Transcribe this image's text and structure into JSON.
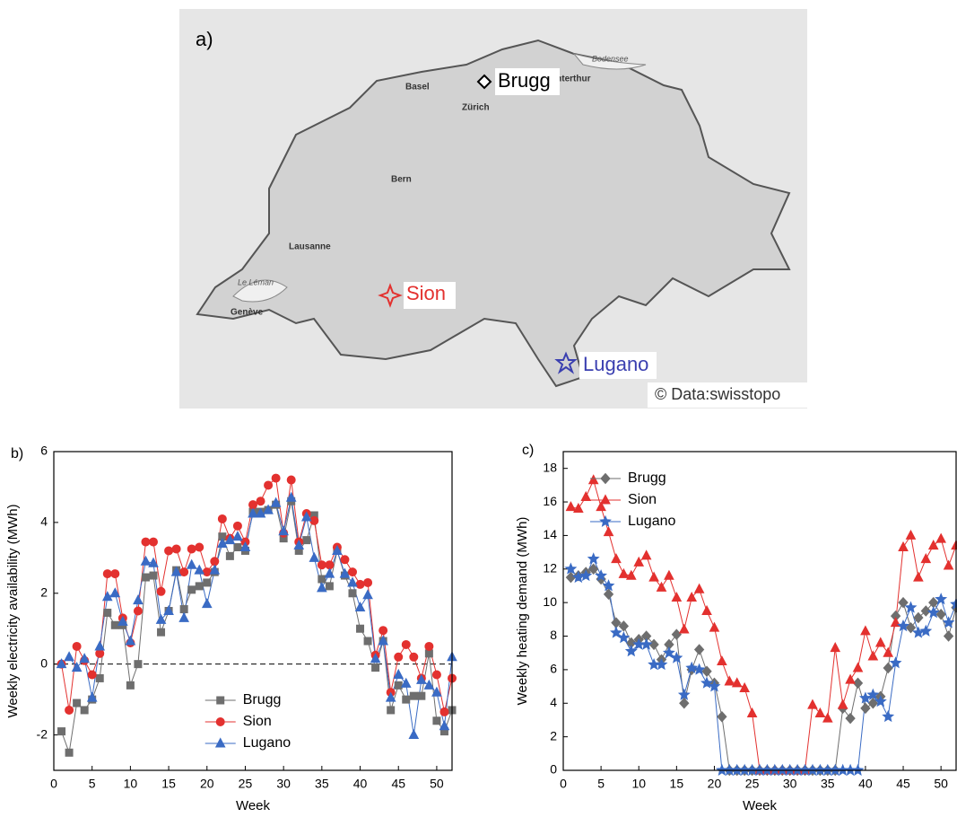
{
  "map": {
    "panel_label": "a)",
    "credit": "© Data:swisstopo",
    "sites": [
      {
        "name": "Brugg"
      },
      {
        "name": "Sion"
      },
      {
        "name": "Lugano"
      }
    ],
    "cities": [
      "Basel",
      "Zürich",
      "Bern",
      "Lausanne",
      "Genève",
      "Winterthur"
    ],
    "lakes": [
      "Le Léman",
      "Bodensee"
    ]
  },
  "chart_data": [
    {
      "type": "line",
      "panel_label": "b)",
      "x_label": "Week",
      "y_label": "Weekly electricity availability (MWh)",
      "x": [
        1,
        2,
        3,
        4,
        5,
        6,
        7,
        8,
        9,
        10,
        11,
        12,
        13,
        14,
        15,
        16,
        17,
        18,
        19,
        20,
        21,
        22,
        23,
        24,
        25,
        26,
        27,
        28,
        29,
        30,
        31,
        32,
        33,
        34,
        35,
        36,
        37,
        38,
        39,
        40,
        41,
        42,
        43,
        44,
        45,
        46,
        47,
        48,
        49,
        50,
        51,
        52
      ],
      "xlim": [
        0,
        52
      ],
      "xticks": [
        0,
        5,
        10,
        15,
        20,
        25,
        30,
        35,
        40,
        45,
        50
      ],
      "ylim": [
        -3,
        6
      ],
      "yticks": [
        -2,
        0,
        2,
        4,
        6
      ],
      "hline": 0,
      "legend": "lower center",
      "series": [
        {
          "name": "Brugg",
          "color": "#6e6e6e",
          "marker": "square",
          "values": [
            -1.9,
            -2.5,
            -1.1,
            -1.3,
            -1.0,
            -0.4,
            1.45,
            1.1,
            1.1,
            -0.6,
            0.0,
            2.45,
            2.5,
            0.9,
            1.5,
            2.65,
            1.55,
            2.1,
            2.2,
            2.3,
            2.6,
            3.6,
            3.05,
            3.3,
            3.2,
            4.3,
            4.3,
            4.35,
            4.5,
            3.55,
            4.6,
            3.2,
            3.5,
            4.2,
            2.4,
            2.2,
            3.2,
            2.5,
            2.0,
            1.0,
            0.65,
            -0.1,
            0.65,
            -1.3,
            -0.6,
            -1.0,
            -0.9,
            -0.9,
            0.3,
            -1.6,
            -1.9,
            -1.3
          ]
        },
        {
          "name": "Sion",
          "color": "#e3312f",
          "marker": "circle",
          "values": [
            0.0,
            -1.3,
            0.5,
            0.1,
            -0.3,
            0.3,
            2.55,
            2.55,
            1.3,
            0.6,
            1.5,
            3.45,
            3.45,
            2.05,
            3.2,
            3.25,
            2.6,
            3.25,
            3.3,
            2.6,
            2.9,
            4.1,
            3.55,
            3.9,
            3.45,
            4.5,
            4.6,
            5.05,
            5.25,
            3.7,
            5.2,
            3.45,
            4.25,
            4.05,
            2.8,
            2.8,
            3.3,
            2.95,
            2.6,
            2.25,
            2.3,
            0.25,
            0.95,
            -0.8,
            0.2,
            0.55,
            0.2,
            -0.4,
            0.5,
            -0.3,
            -1.35,
            -0.4
          ]
        },
        {
          "name": "Lugano",
          "color": "#3a6bc4",
          "marker": "triangle",
          "values": [
            0.0,
            0.2,
            -0.1,
            0.15,
            -0.95,
            0.5,
            1.9,
            2.0,
            1.2,
            0.65,
            1.8,
            2.9,
            2.85,
            1.25,
            1.5,
            2.6,
            1.3,
            2.8,
            2.65,
            1.7,
            2.65,
            3.4,
            3.5,
            3.6,
            3.3,
            4.25,
            4.25,
            4.35,
            4.55,
            3.75,
            4.7,
            3.35,
            4.15,
            3.0,
            2.15,
            2.55,
            3.2,
            2.55,
            2.3,
            1.6,
            1.95,
            0.15,
            0.65,
            -0.95,
            -0.3,
            -0.55,
            -2.0,
            -0.45,
            -0.6,
            -0.8,
            -1.75,
            0.2
          ]
        }
      ]
    },
    {
      "type": "line",
      "panel_label": "c)",
      "x_label": "Week",
      "y_label": "Weekly heating demand (MWh)",
      "x": [
        1,
        2,
        3,
        4,
        5,
        6,
        7,
        8,
        9,
        10,
        11,
        12,
        13,
        14,
        15,
        16,
        17,
        18,
        19,
        20,
        21,
        22,
        23,
        24,
        25,
        26,
        27,
        28,
        29,
        30,
        31,
        32,
        33,
        34,
        35,
        36,
        37,
        38,
        39,
        40,
        41,
        42,
        43,
        44,
        45,
        46,
        47,
        48,
        49,
        50,
        51,
        52
      ],
      "xlim": [
        0,
        52
      ],
      "xticks": [
        0,
        5,
        10,
        15,
        20,
        25,
        30,
        35,
        40,
        45,
        50
      ],
      "ylim": [
        0,
        19
      ],
      "yticks": [
        0,
        2,
        4,
        6,
        8,
        10,
        12,
        14,
        16,
        18
      ],
      "legend": "upper left",
      "series": [
        {
          "name": "Brugg",
          "color": "#6e6e6e",
          "marker": "diamond",
          "values": [
            11.5,
            11.6,
            11.8,
            12.0,
            11.4,
            10.5,
            8.8,
            8.6,
            7.6,
            7.8,
            8.0,
            7.5,
            6.6,
            7.5,
            8.1,
            4.0,
            6.0,
            7.2,
            5.9,
            5.2,
            3.2,
            0,
            0,
            0,
            0,
            0,
            0,
            0,
            0,
            0,
            0,
            0,
            0,
            0,
            0,
            0,
            3.7,
            3.1,
            5.2,
            3.7,
            4.0,
            4.4,
            6.1,
            9.2,
            10.0,
            8.5,
            9.1,
            9.5,
            10.0,
            9.3,
            8.0,
            9.7
          ]
        },
        {
          "name": "Sion",
          "color": "#e3312f",
          "marker": "triangle",
          "values": [
            15.7,
            15.6,
            16.3,
            17.3,
            15.7,
            14.2,
            12.6,
            11.7,
            11.6,
            12.4,
            12.8,
            11.5,
            10.9,
            11.6,
            10.3,
            8.4,
            10.3,
            10.8,
            9.5,
            8.5,
            6.5,
            5.3,
            5.2,
            4.9,
            3.4,
            0,
            0,
            0,
            0,
            0,
            0,
            0,
            3.9,
            3.4,
            3.1,
            7.3,
            3.9,
            5.4,
            6.1,
            8.3,
            6.8,
            7.6,
            7.0,
            8.8,
            13.3,
            14.0,
            11.5,
            12.6,
            13.4,
            13.8,
            12.2,
            13.4
          ]
        },
        {
          "name": "Lugano",
          "color": "#3a6bc4",
          "marker": "star",
          "values": [
            12.0,
            11.5,
            11.6,
            12.6,
            11.6,
            11.0,
            8.2,
            7.9,
            7.1,
            7.5,
            7.5,
            6.3,
            6.3,
            7.0,
            6.7,
            4.5,
            6.1,
            6.0,
            5.2,
            5.0,
            0,
            0,
            0,
            0,
            0,
            0,
            0,
            0,
            0,
            0,
            0,
            0,
            0,
            0,
            0,
            0,
            0,
            0,
            0,
            4.3,
            4.5,
            4.1,
            3.2,
            6.4,
            8.6,
            9.7,
            8.2,
            8.3,
            9.4,
            10.2,
            8.8,
            9.9
          ]
        }
      ]
    }
  ]
}
